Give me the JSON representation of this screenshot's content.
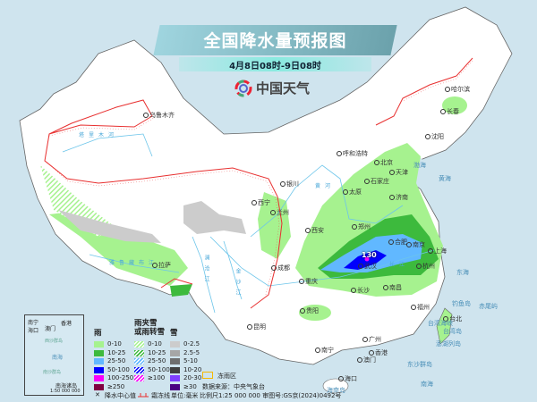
{
  "header": {
    "title": "全国降水量预报图",
    "subtitle": "4月8日08时-9日08时",
    "brand": "中国天气"
  },
  "cities": [
    "乌鲁木齐",
    "哈尔滨",
    "长春",
    "沈阳",
    "呼和浩特",
    "北京",
    "天津",
    "石家庄",
    "太原",
    "济南",
    "银川",
    "西宁",
    "兰州",
    "西安",
    "郑州",
    "合肥",
    "南京",
    "上海",
    "杭州",
    "武汉",
    "成都",
    "重庆",
    "长沙",
    "南昌",
    "拉萨",
    "贵阳",
    "昆明",
    "福州",
    "台北",
    "南宁",
    "广州",
    "香港",
    "澳门",
    "海口"
  ],
  "seas": [
    "渤海",
    "黄海",
    "东海",
    "南海",
    "台湾岛",
    "海南岛",
    "东沙群岛",
    "钓鱼岛",
    "赤尾屿",
    "澎湖列岛",
    "台湾海峡"
  ],
  "rivers": [
    "塔里木河",
    "雅鲁藏布江",
    "黄河",
    "长江",
    "澜沧江",
    "金沙江"
  ],
  "max_value": "130",
  "inset": {
    "cities": [
      "南宁",
      "海口",
      "澳门",
      "香港"
    ],
    "labels": [
      "西沙群岛",
      "南沙群岛",
      "南海",
      "南海诸岛"
    ],
    "scale": "1:50 000 000"
  },
  "legend": {
    "rain": {
      "title": "雨",
      "items": [
        "0-10",
        "10-25",
        "25-50",
        "50-100",
        "100-250",
        "≥250"
      ],
      "colors": [
        "#a6f28f",
        "#3dba3d",
        "#61b8ff",
        "#0000fe",
        "#fa00fa",
        "#800040"
      ]
    },
    "sleet": {
      "title": "雨夹雪\n或雨转雪",
      "title1": "雨夹雪",
      "title2": "或雨转雪",
      "items": [
        "0-10",
        "10-25",
        "25-50",
        "50-100",
        "≥100"
      ],
      "colors": [
        "#a6f28f",
        "#3dba3d",
        "#61b8ff",
        "#0000fe",
        "#fa00fa"
      ]
    },
    "snow": {
      "title": "雪",
      "items": [
        "0-2.5",
        "2.5-5",
        "5-10",
        "10-20",
        "20-30",
        "≥30"
      ],
      "colors": [
        "#cccccc",
        "#a6a6a6",
        "#6e6e6e",
        "#404040",
        "#8040ff",
        "#4b0082"
      ]
    },
    "freezing_rain": "冻雨区",
    "freezing_rain_color": "#f5b800",
    "source": "数据来源：中央气象台",
    "max_marker": "降水中心值",
    "frost_line": "霜冻线",
    "unit": "单位:毫米",
    "scale_note": "比例尺1:25 000 000  审图号:GS京(2024)0492号"
  },
  "colors": {
    "sea": "#cfe4ee",
    "land": "#ffffff",
    "frost_line": "#e83030"
  }
}
